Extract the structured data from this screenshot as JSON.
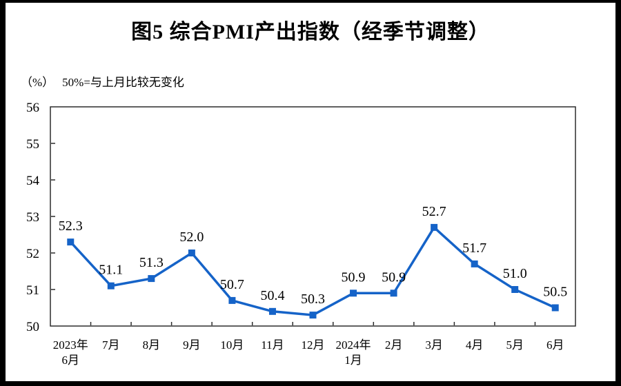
{
  "page": {
    "title": "图5  综合PMI产出指数（经季节调整）",
    "unit_label": "（%）",
    "axis_note": "50%=与上月比较无变化"
  },
  "chart_data": {
    "type": "line",
    "title": "图5 综合PMI产出指数（经季节调整）",
    "unit": "（%）",
    "note": "50%=与上月比较无变化",
    "categories": [
      "2023年\n6月",
      "7月",
      "8月",
      "9月",
      "10月",
      "11月",
      "12月",
      "2024年\n1月",
      "2月",
      "3月",
      "4月",
      "5月",
      "6月"
    ],
    "series": [
      {
        "name": "综合PMI产出指数",
        "values": [
          52.3,
          51.1,
          51.3,
          52.0,
          50.7,
          50.4,
          50.3,
          50.9,
          50.9,
          52.7,
          51.7,
          51.0,
          50.5
        ],
        "labels": [
          "52.3",
          "51.1",
          "51.3",
          "52.0",
          "50.7",
          "50.4",
          "50.3",
          "50.9",
          "50.9",
          "52.7",
          "51.7",
          "51.0",
          "50.5"
        ],
        "color": "#1563C8",
        "marker": "square"
      }
    ],
    "ylim": [
      50,
      56
    ],
    "y_ticks": [
      50,
      51,
      52,
      53,
      54,
      55,
      56
    ],
    "grid": false,
    "legend_position": "none",
    "axis_color": "#2b2b2b",
    "label_color": "#000000"
  }
}
